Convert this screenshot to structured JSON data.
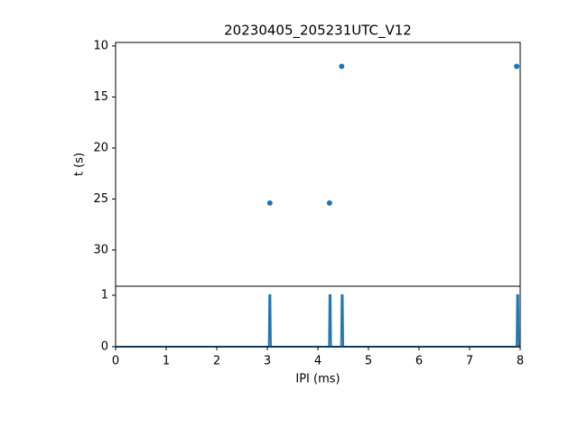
{
  "chart_data": [
    {
      "type": "scatter",
      "title": "20230405_205231UTC_V12",
      "ylabel": "t (s)",
      "x": [
        3.05,
        4.23,
        4.47,
        7.93
      ],
      "values": [
        25.4,
        25.4,
        12.0,
        12.0
      ],
      "color": "#1f77b4",
      "xlim": [
        0,
        8
      ],
      "ylim": [
        33.55,
        9.65
      ],
      "yticks": [
        10,
        15,
        20,
        25,
        30
      ]
    },
    {
      "type": "line",
      "xlabel": "IPI (ms)",
      "color": "#1f77b4",
      "x": [
        0,
        3.03,
        3.04,
        3.06,
        3.07,
        4.22,
        4.23,
        4.25,
        4.26,
        4.46,
        4.47,
        4.49,
        4.5,
        7.93,
        7.94,
        7.96,
        7.97,
        8
      ],
      "values": [
        0,
        0,
        1,
        1,
        0,
        0,
        1,
        1,
        0,
        0,
        1,
        1,
        0,
        0,
        1,
        1,
        0,
        0
      ],
      "xlim": [
        0,
        8
      ],
      "xticks": [
        0,
        1,
        2,
        3,
        4,
        5,
        6,
        7,
        8
      ],
      "ylim": [
        0,
        1.175
      ],
      "yticks": [
        0,
        1
      ]
    }
  ]
}
